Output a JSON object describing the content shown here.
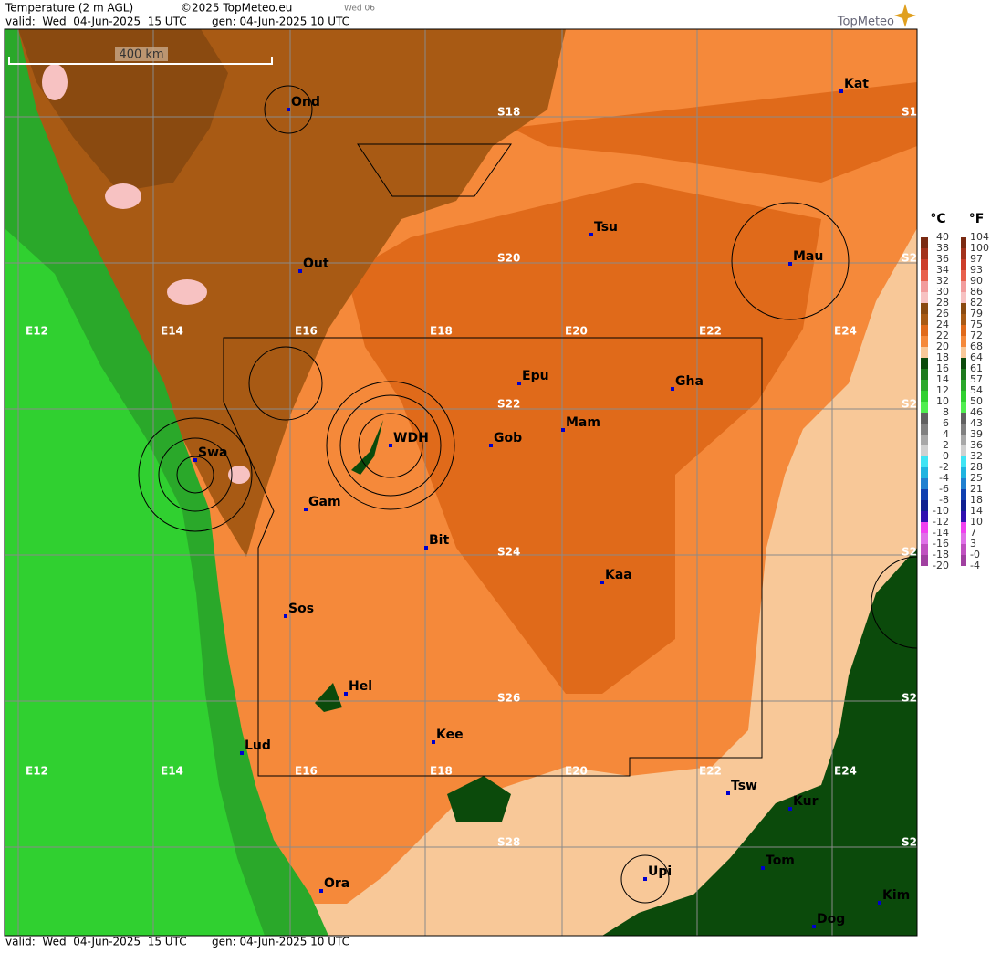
{
  "header": {
    "title": "Temperature (2 m AGL)",
    "copyright": "©2025 TopMeteo.eu",
    "day": "Wed 06",
    "valid": "valid:  Wed  04-Jun-2025  15 UTC",
    "gen": "gen: 04-Jun-2025 10 UTC",
    "brand": "TopMeteo"
  },
  "footer": {
    "valid": "valid:  Wed  04-Jun-2025  15 UTC",
    "gen": "gen: 04-Jun-2025 10 UTC"
  },
  "map": {
    "scale": "400 km",
    "lon_labels": [
      "E12",
      "E14",
      "E16",
      "E18",
      "E20",
      "E22",
      "E24"
    ],
    "lat_labels": [
      "S18",
      "S20",
      "S22",
      "S24",
      "S26",
      "S28"
    ],
    "cities": [
      "Ond",
      "Kat",
      "Tsu",
      "Out",
      "Mau",
      "Epu",
      "Gha",
      "Mam",
      "WDH",
      "Gob",
      "Swa",
      "Gam",
      "Bit",
      "Kaa",
      "Sos",
      "Hel",
      "Kee",
      "Lud",
      "Tsw",
      "Kur",
      "Tom",
      "Upi",
      "Ora",
      "Kim",
      "Dog"
    ]
  },
  "legend": {
    "celsius_unit": "°C",
    "fahrenheit_unit": "°F",
    "celsius": [
      "40",
      "38",
      "36",
      "34",
      "32",
      "30",
      "28",
      "26",
      "24",
      "22",
      "20",
      "18",
      "16",
      "14",
      "12",
      "10",
      "8",
      "6",
      "4",
      "2",
      "0",
      "-2",
      "-4",
      "-6",
      "-8",
      "-10",
      "-12",
      "-14",
      "-16",
      "-18",
      "-20"
    ],
    "fahrenheit": [
      "104",
      "100",
      "97",
      "93",
      "90",
      "86",
      "82",
      "79",
      "75",
      "72",
      "68",
      "64",
      "61",
      "57",
      "54",
      "50",
      "46",
      "43",
      "39",
      "36",
      "32",
      "28",
      "25",
      "21",
      "18",
      "14",
      "10",
      "7",
      "3",
      "-0",
      "-4"
    ],
    "colors": [
      "#7a2a12",
      "#a3321c",
      "#cc3d2a",
      "#e8604c",
      "#f29c9c",
      "#f7c2c2",
      "#8a4a10",
      "#a85a14",
      "#e06a1a",
      "#f5893a",
      "#f8c898",
      "#0b4a0b",
      "#1e7a1e",
      "#2aa82a",
      "#30d030",
      "#50ee50",
      "#606060",
      "#808080",
      "#a8a8a8",
      "#d0d0d0",
      "#40e4f4",
      "#20b4e0",
      "#2080d0",
      "#1040b0",
      "#102090",
      "#3010b0",
      "#f040f0",
      "#e070e8",
      "#c050c0",
      "#a040a0"
    ]
  }
}
